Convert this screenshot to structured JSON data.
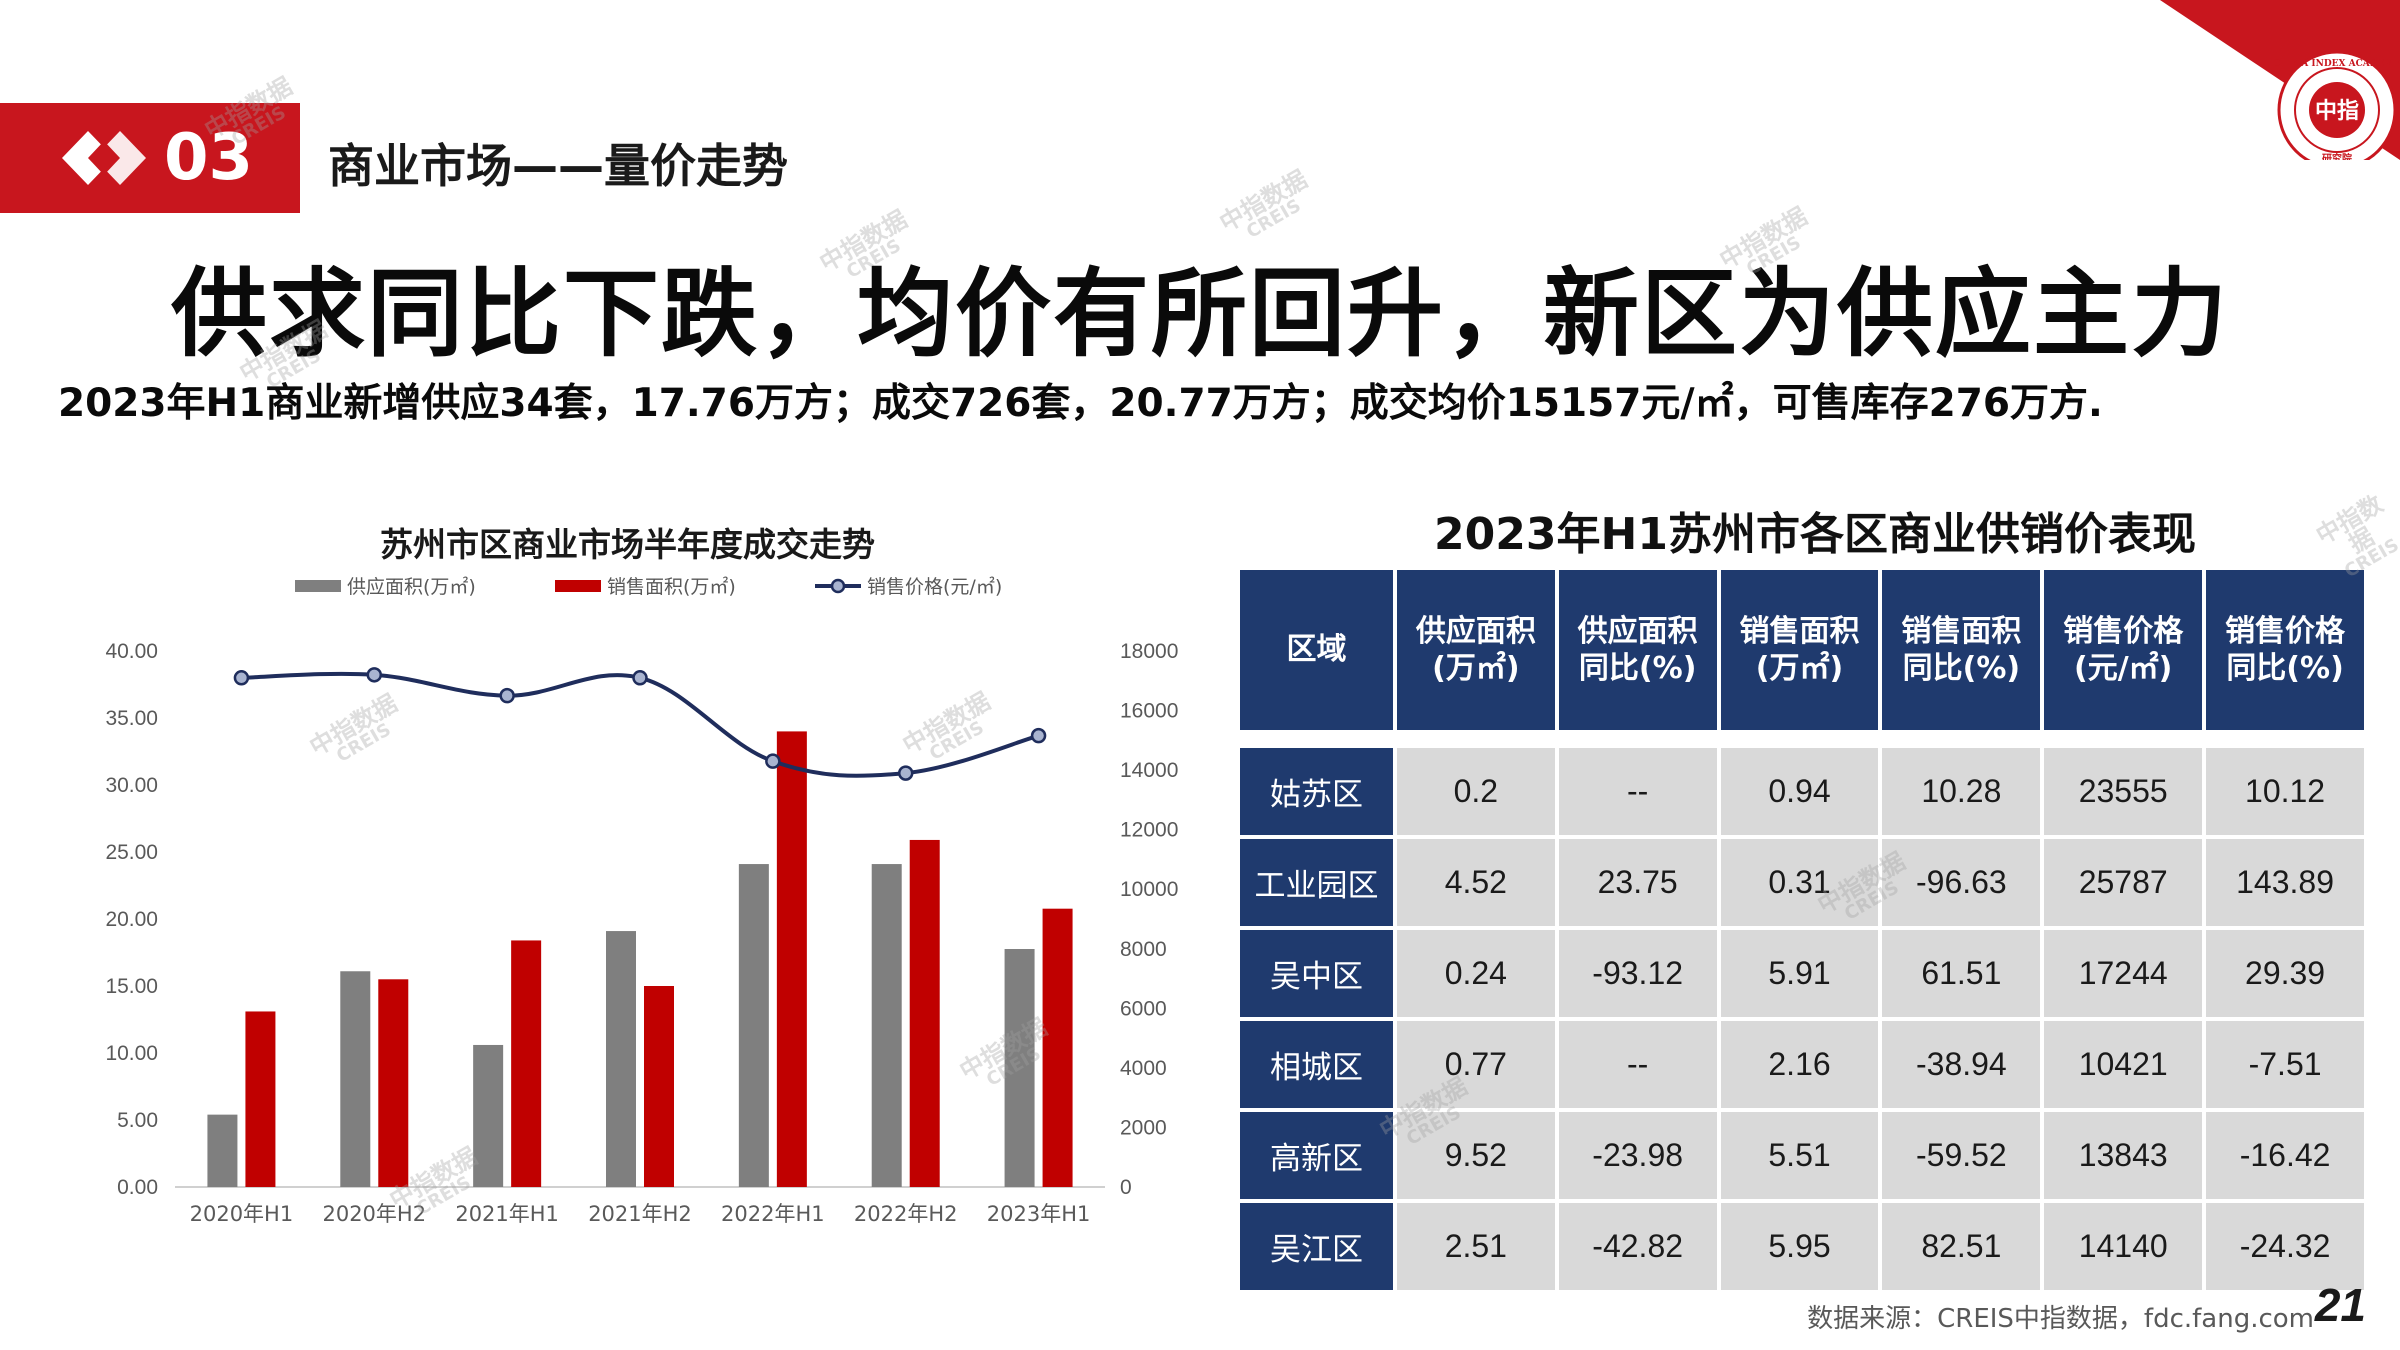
{
  "section": {
    "number": "03",
    "title": "商业市场——量价走势"
  },
  "headline": "供求同比下跌，均价有所回升，新区为供应主力",
  "summary": "2023年H1商业新增供应34套，17.76万方；成交726套，20.77万方；成交均价15157元/㎡，可售库存276万方.",
  "logo": {
    "text_top": "CHINA INDEX ACADEMY",
    "text_center": "中指",
    "text_bottom": "研究院"
  },
  "watermark": {
    "line1": "中指数据",
    "line2": "CREIS"
  },
  "chart_data": {
    "type": "bar",
    "title": "苏州市区商业市场半年度成交走势",
    "categories": [
      "2020年H1",
      "2020年H2",
      "2021年H1",
      "2021年H2",
      "2022年H1",
      "2022年H2",
      "2023年H1"
    ],
    "series": [
      {
        "name": "供应面积(万㎡)",
        "type": "bar",
        "axis": "left",
        "color": "#7f7f7f",
        "values": [
          5.4,
          16.1,
          10.6,
          19.1,
          24.1,
          24.1,
          17.76
        ]
      },
      {
        "name": "销售面积(万㎡)",
        "type": "bar",
        "axis": "left",
        "color": "#c00000",
        "values": [
          13.1,
          15.5,
          18.4,
          15.0,
          34.0,
          25.9,
          20.77
        ]
      },
      {
        "name": "销售价格(元/㎡)",
        "type": "line",
        "axis": "right",
        "color": "#1f2d5c",
        "values": [
          17100,
          17200,
          16500,
          17100,
          14300,
          13900,
          15157
        ]
      }
    ],
    "y_left": {
      "min": 0,
      "max": 40,
      "ticks": [
        "0.00",
        "5.00",
        "10.00",
        "15.00",
        "20.00",
        "25.00",
        "30.00",
        "35.00",
        "40.00"
      ]
    },
    "y_right": {
      "min": 0,
      "max": 18000,
      "ticks": [
        "0",
        "2000",
        "4000",
        "6000",
        "8000",
        "10000",
        "12000",
        "14000",
        "16000",
        "18000"
      ]
    },
    "legend_position": "top",
    "grid": false
  },
  "table": {
    "title": "2023年H1苏州市各区商业供销价表现",
    "headers": [
      [
        "区域"
      ],
      [
        "供应面积",
        "(万㎡)"
      ],
      [
        "供应面积",
        "同比(%)"
      ],
      [
        "销售面积",
        "(万㎡)"
      ],
      [
        "销售面积",
        "同比(%)"
      ],
      [
        "销售价格",
        "(元/㎡)"
      ],
      [
        "销售价格",
        "同比(%)"
      ]
    ],
    "rows": [
      [
        "姑苏区",
        "0.2",
        "--",
        "0.94",
        "10.28",
        "23555",
        "10.12"
      ],
      [
        "工业园区",
        "4.52",
        "23.75",
        "0.31",
        "-96.63",
        "25787",
        "143.89"
      ],
      [
        "吴中区",
        "0.24",
        "-93.12",
        "5.91",
        "61.51",
        "17244",
        "29.39"
      ],
      [
        "相城区",
        "0.77",
        "--",
        "2.16",
        "-38.94",
        "10421",
        "-7.51"
      ],
      [
        "高新区",
        "9.52",
        "-23.98",
        "5.51",
        "-59.52",
        "13843",
        "-16.42"
      ],
      [
        "吴江区",
        "2.51",
        "-42.82",
        "5.95",
        "82.51",
        "14140",
        "-24.32"
      ]
    ]
  },
  "source": "数据来源：CREIS中指数据，fdc.fang.com",
  "page_number": "21",
  "colors": {
    "brand_red": "#c8161e",
    "table_navy": "#1f3a6e",
    "cell_gray": "#d9d9d9"
  }
}
